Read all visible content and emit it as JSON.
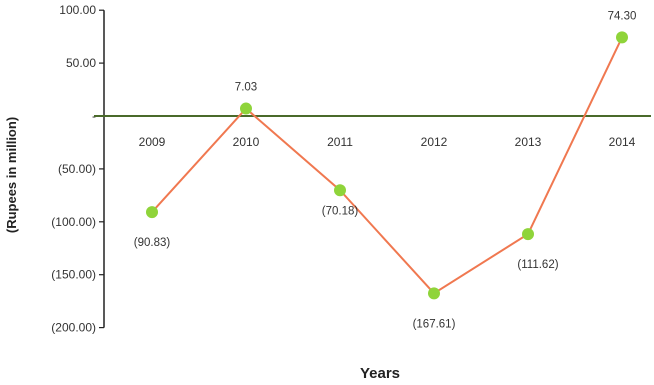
{
  "chart_data": {
    "type": "line",
    "x": [
      "2009",
      "2010",
      "2011",
      "2012",
      "2013",
      "2014"
    ],
    "series": [
      {
        "values": [
          -90.83,
          7.03,
          -70.18,
          -167.61,
          -111.62,
          74.3
        ]
      }
    ],
    "data_labels": [
      "(90.83)",
      "7.03",
      "(70.18)",
      "(167.61)",
      "(111.62)",
      "74.30"
    ],
    "xlabel": "Years",
    "ylabel": "(Rupees in million)",
    "ylim": [
      -200,
      100
    ],
    "yticks": [
      {
        "value": 100,
        "label": "100.00"
      },
      {
        "value": 50,
        "label": "50.00"
      },
      {
        "value": 0,
        "label": "-"
      },
      {
        "value": -50,
        "label": "(50.00)"
      },
      {
        "value": -100,
        "label": "(100.00)"
      },
      {
        "value": -150,
        "label": "(150.00)"
      },
      {
        "value": -200,
        "label": "(200.00)"
      }
    ],
    "grid": false,
    "legend": "none",
    "colors": {
      "line": "#f07850",
      "marker": "#8fd43a",
      "axis": "#222222",
      "zero_line": "#4a6a2a"
    }
  }
}
